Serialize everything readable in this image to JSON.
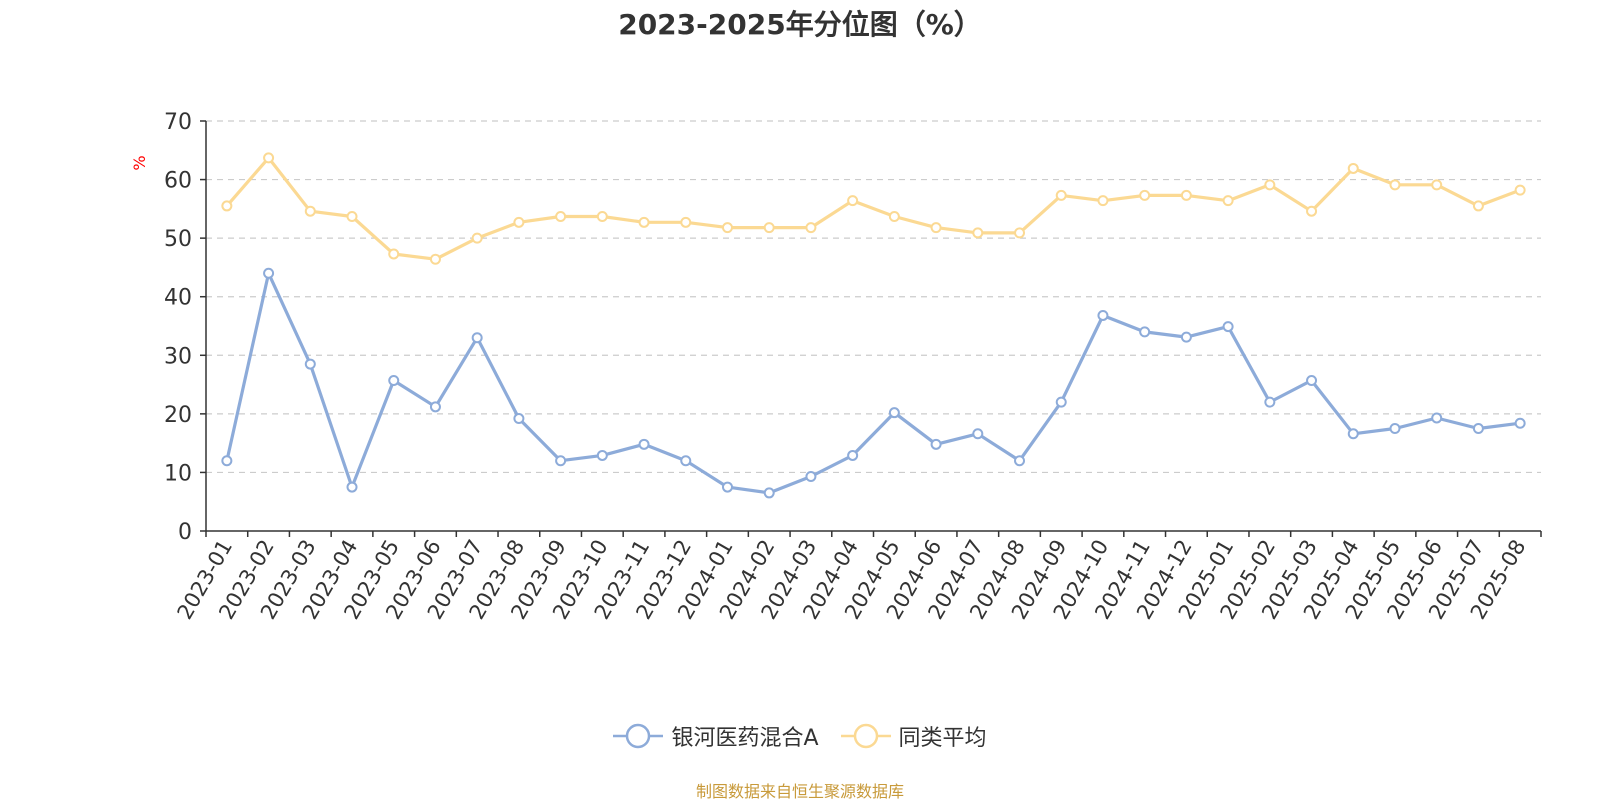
{
  "chart_data": {
    "type": "line",
    "title": "2023-2025年分位图（%）",
    "ylabel": "%",
    "ylim": [
      0,
      70
    ],
    "yticks": [
      0,
      10,
      20,
      30,
      40,
      50,
      60,
      70
    ],
    "grid": true,
    "legend_position": "bottom",
    "categories": [
      "2023-01",
      "2023-02",
      "2023-03",
      "2023-04",
      "2023-05",
      "2023-06",
      "2023-07",
      "2023-08",
      "2023-09",
      "2023-10",
      "2023-11",
      "2023-12",
      "2024-01",
      "2024-02",
      "2024-03",
      "2024-04",
      "2024-05",
      "2024-06",
      "2024-07",
      "2024-08",
      "2024-09",
      "2024-10",
      "2024-11",
      "2024-12",
      "2025-01",
      "2025-02",
      "2025-03",
      "2025-04",
      "2025-05",
      "2025-06",
      "2025-07",
      "2025-08"
    ],
    "series": [
      {
        "name": "银河医药混合A",
        "color": "#8dabd9",
        "values": [
          12,
          44,
          28.5,
          7.5,
          25.7,
          21.2,
          33,
          19.2,
          12,
          12.9,
          14.8,
          12,
          7.5,
          6.5,
          9.3,
          12.9,
          20.2,
          14.8,
          16.6,
          12,
          22,
          36.8,
          34,
          33.1,
          34.9,
          22,
          25.7,
          16.6,
          17.5,
          19.3,
          17.5,
          18.4
        ]
      },
      {
        "name": "同类平均",
        "color": "#fbd993",
        "values": [
          55.5,
          63.7,
          54.6,
          53.7,
          47.3,
          46.4,
          50,
          52.7,
          53.7,
          53.7,
          52.7,
          52.7,
          51.8,
          51.8,
          51.8,
          56.4,
          53.7,
          51.8,
          50.9,
          50.9,
          57.3,
          56.4,
          57.3,
          57.3,
          56.4,
          59.1,
          54.6,
          61.9,
          59.1,
          59.1,
          55.5,
          58.2
        ]
      }
    ]
  },
  "source": "制图数据来自恒生聚源数据库"
}
